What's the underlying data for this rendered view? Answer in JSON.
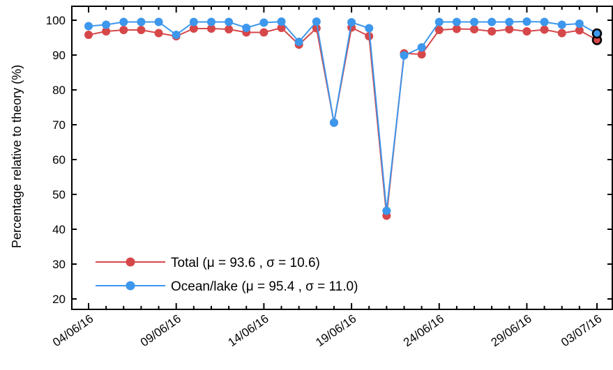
{
  "chart_data": {
    "type": "line",
    "title": "",
    "xlabel": "",
    "ylabel": "Percentage relative to theory (%)",
    "x": [
      "04/06/16",
      "05/06/16",
      "06/06/16",
      "07/06/16",
      "08/06/16",
      "09/06/16",
      "10/06/16",
      "11/06/16",
      "12/06/16",
      "13/06/16",
      "14/06/16",
      "15/06/16",
      "16/06/16",
      "17/06/16",
      "18/06/16",
      "19/06/16",
      "20/06/16",
      "21/06/16",
      "22/06/16",
      "23/06/16",
      "24/06/16",
      "25/06/16",
      "26/06/16",
      "27/06/16",
      "28/06/16",
      "29/06/16",
      "30/06/16",
      "01/07/16",
      "02/07/16",
      "03/07/16"
    ],
    "xticks": [
      "04/06/16",
      "09/06/16",
      "14/06/16",
      "19/06/16",
      "24/06/16",
      "29/06/16",
      "03/07/16"
    ],
    "ylim": [
      17,
      104
    ],
    "yticks": [
      20,
      30,
      40,
      50,
      60,
      70,
      80,
      90,
      100
    ],
    "grid": false,
    "legend_position": "bottom-left",
    "series": [
      {
        "name": "Total (μ = 93.6 , σ = 10.6)",
        "color": "#d6474a",
        "values": [
          95.8,
          96.8,
          97.2,
          97.2,
          96.3,
          95.4,
          97.6,
          97.6,
          97.4,
          96.5,
          96.5,
          97.8,
          93.0,
          97.7,
          70.6,
          97.9,
          95.4,
          43.9,
          90.5,
          90.2,
          97.2,
          97.5,
          97.4,
          96.8,
          97.4,
          96.8,
          97.3,
          96.3,
          97.1,
          94.3
        ]
      },
      {
        "name": "Ocean/lake (μ = 95.4 , σ = 11.0)",
        "color": "#3d97ec",
        "values": [
          98.3,
          98.7,
          99.5,
          99.5,
          99.5,
          95.8,
          99.5,
          99.5,
          99.5,
          97.8,
          99.3,
          99.6,
          93.8,
          99.6,
          70.6,
          99.4,
          97.7,
          45.3,
          89.9,
          92.2,
          99.5,
          99.5,
          99.5,
          99.5,
          99.5,
          99.6,
          99.5,
          98.7,
          99.0,
          96.2
        ]
      }
    ],
    "last_point_marker_outline": "#000000"
  }
}
